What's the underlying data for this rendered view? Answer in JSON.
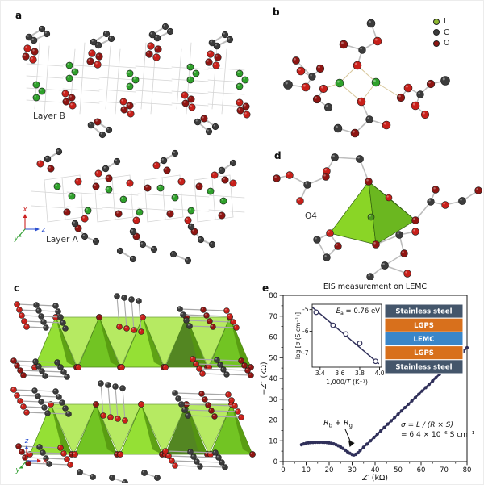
{
  "panels": {
    "a": {
      "label": "a",
      "layer_top": "Layer B",
      "layer_bottom": "Layer A",
      "axis": {
        "up": "x",
        "right": "z",
        "diagonal": "y"
      }
    },
    "b": {
      "label": "b",
      "legend": [
        {
          "label": "Li",
          "color": "#8db830"
        },
        {
          "label": "C",
          "color": "#3c3c3c"
        },
        {
          "label": "O",
          "color": "#8f1512"
        }
      ]
    },
    "c": {
      "label": "c",
      "axis": {
        "up": "z",
        "right": "x",
        "diagonal": "y"
      }
    },
    "d": {
      "label": "d",
      "site_label": "O4"
    },
    "e": {
      "label": "e",
      "title": "EIS measurement on LEMC",
      "x_axis": {
        "label_italic": "Z′",
        "label_rest": " (kΩ)",
        "ticks": [
          0,
          10,
          20,
          30,
          40,
          50,
          60,
          70,
          80
        ]
      },
      "y_axis": {
        "label_italic": "−Z″",
        "label_rest": " (kΩ)",
        "ticks": [
          0,
          10,
          20,
          30,
          40,
          50,
          60,
          70,
          80
        ]
      },
      "annotation_r": {
        "sym1": "R",
        "sub1": "b",
        "plus": " + ",
        "sym2": "R",
        "sub2": "g"
      },
      "annotation_sigma": {
        "line1": "σ = L / (R × S)",
        "line2": "= 6.4 × 10⁻⁶ S cm⁻¹"
      },
      "inset_arrhenius": {
        "ea": {
          "sym": "E",
          "sub": "a",
          "rest": " = 0.76 eV"
        },
        "x_label": {
          "pre": "1,000/",
          "it": "T",
          "post": " (K⁻¹)"
        },
        "y_label": "log [σ (S cm⁻¹)]",
        "x_ticks": [
          3.4,
          3.6,
          3.8,
          4.0
        ],
        "y_ticks": [
          -5,
          -6,
          -7
        ]
      },
      "inset_stack": {
        "layers": [
          {
            "label": "Stainless steel",
            "color": "#44566b"
          },
          {
            "label": "LGPS",
            "color": "#d8701c"
          },
          {
            "label": "LEMC",
            "color": "#3a86c8"
          },
          {
            "label": "LGPS",
            "color": "#d8701c"
          },
          {
            "label": "Stainless steel",
            "color": "#44566b"
          }
        ]
      }
    }
  },
  "chart_data": [
    {
      "type": "line",
      "title": "EIS measurement on LEMC",
      "xlabel": "Z′ (kΩ)",
      "ylabel": "−Z″ (kΩ)",
      "xlim": [
        0,
        80
      ],
      "ylim": [
        0,
        80
      ],
      "grid": false,
      "legend_position": "none",
      "series_color": "#30305a",
      "x": [
        8,
        9,
        10,
        11,
        12,
        13,
        14,
        15,
        16,
        17,
        18,
        19,
        20,
        21,
        22,
        23,
        24,
        25,
        26,
        27,
        28,
        29,
        30,
        30.8,
        31.6,
        32.5,
        33.5,
        35,
        36.5,
        38,
        39.5,
        41,
        42.5,
        44,
        45.5,
        47,
        48.5,
        50,
        51.5,
        53,
        54.5,
        56,
        57.5,
        59,
        60.5,
        62,
        63.5,
        65,
        66.5,
        68,
        69.5,
        71,
        72.5,
        74,
        75.5,
        77,
        78.5,
        80
      ],
      "y": [
        8.1,
        8.5,
        8.8,
        9.0,
        9.1,
        9.2,
        9.25,
        9.3,
        9.3,
        9.3,
        9.25,
        9.15,
        9.0,
        8.8,
        8.5,
        8.1,
        7.6,
        7.0,
        6.3,
        5.5,
        4.7,
        4.0,
        3.4,
        3.2,
        3.5,
        4.2,
        5.3,
        6.9,
        8.4,
        10.0,
        11.6,
        13.2,
        14.8,
        16.4,
        18.0,
        19.6,
        21.2,
        22.8,
        24.4,
        26.0,
        27.6,
        29.2,
        30.8,
        32.4,
        34.0,
        35.6,
        37.2,
        38.8,
        40.4,
        42.0,
        43.6,
        45.2,
        46.8,
        48.4,
        50.0,
        51.6,
        53.2,
        54.8
      ],
      "annotations": [
        "Rb + Rg (arrow at dip ≈ 30.8 kΩ)",
        "σ = L / (R × S) = 6.4 × 10⁻⁶ S cm⁻¹"
      ]
    },
    {
      "type": "scatter",
      "title": "Ea = 0.76 eV",
      "xlabel": "1,000/T (K⁻¹)",
      "ylabel": "log [σ (S cm⁻¹)]",
      "xlim": [
        3.32,
        4.02
      ],
      "ylim": [
        -7.65,
        -4.75
      ],
      "x": [
        3.36,
        3.53,
        3.66,
        3.8,
        3.96
      ],
      "y": [
        -5.12,
        -5.72,
        -6.12,
        -6.55,
        -7.38
      ],
      "fit_line": {
        "x": [
          3.33,
          3.99
        ],
        "y": [
          -4.92,
          -7.48
        ]
      },
      "marker": "open-circle"
    }
  ],
  "colors": {
    "atom_red": "#c8201a",
    "atom_dark_red": "#8f1512",
    "atom_carbon": "#3c3c3c",
    "atom_lithium": "#2fa12b",
    "bond": "#bdbdbd",
    "lattice": "#d4d4d4",
    "li_o_bond": "#d8c79a",
    "polyhedron_light": "#8ede26",
    "polyhedron_mid": "#68c013",
    "polyhedron_dark": "#477d12",
    "eis_series": "#30305a",
    "axis_x_color": "#cc2222",
    "axis_y_color": "#2f9e2f",
    "axis_z_color": "#2b4fd0"
  }
}
